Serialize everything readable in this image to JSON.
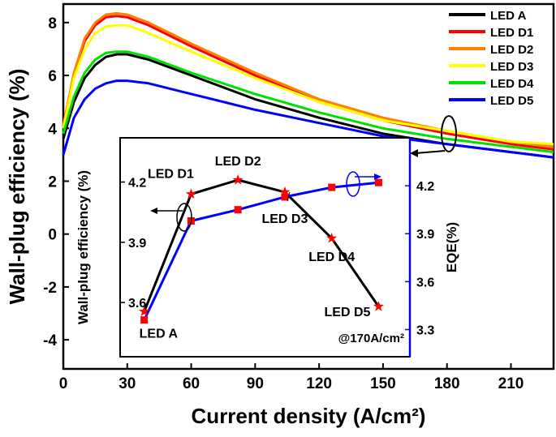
{
  "chart_data": [
    {
      "type": "line",
      "xlabel": "Current density (A/cm²)",
      "ylabel": "Wall-plug efficiency (%)",
      "x": [
        0,
        5,
        10,
        15,
        20,
        25,
        30,
        40,
        60,
        90,
        120,
        150,
        180,
        210,
        230
      ],
      "xlim": [
        0,
        230
      ],
      "xticks": [
        0,
        30,
        60,
        90,
        120,
        150,
        180,
        210
      ],
      "ylim": [
        -5.1,
        8.7
      ],
      "yticks": [
        -4,
        -2,
        0,
        2,
        4,
        6,
        8
      ],
      "legend": "upper right",
      "series": [
        {
          "name": "LED A",
          "color": "#000000",
          "values": [
            3.6,
            5.0,
            5.9,
            6.4,
            6.7,
            6.8,
            6.8,
            6.6,
            6.0,
            5.1,
            4.4,
            3.8,
            3.4,
            3.1,
            2.9
          ]
        },
        {
          "name": "LED D1",
          "color": "#ff0000",
          "values": [
            4.0,
            6.0,
            7.3,
            7.9,
            8.2,
            8.25,
            8.2,
            7.9,
            7.1,
            6.0,
            5.0,
            4.3,
            3.8,
            3.4,
            3.2
          ]
        },
        {
          "name": "LED D2",
          "color": "#ff8000",
          "values": [
            4.1,
            6.1,
            7.4,
            8.0,
            8.3,
            8.35,
            8.3,
            8.0,
            7.2,
            6.1,
            5.1,
            4.4,
            3.9,
            3.5,
            3.3
          ]
        },
        {
          "name": "LED D3",
          "color": "#ffff00",
          "values": [
            4.0,
            5.9,
            7.0,
            7.6,
            7.85,
            7.9,
            7.9,
            7.6,
            6.9,
            5.9,
            5.0,
            4.3,
            3.9,
            3.5,
            3.4
          ]
        },
        {
          "name": "LED D4",
          "color": "#00e000",
          "values": [
            3.8,
            5.2,
            6.1,
            6.6,
            6.85,
            6.9,
            6.9,
            6.7,
            6.1,
            5.3,
            4.6,
            4.0,
            3.6,
            3.3,
            3.1
          ]
        },
        {
          "name": "LED D5",
          "color": "#0000ff",
          "values": [
            3.0,
            4.4,
            5.1,
            5.5,
            5.7,
            5.8,
            5.8,
            5.7,
            5.3,
            4.7,
            4.2,
            3.7,
            3.4,
            3.1,
            2.9
          ]
        }
      ]
    },
    {
      "type": "line",
      "ylabel": "Wall-plug efficiency (%)",
      "y2label": "EQE(%)",
      "annotation": "@170A/cm²",
      "point_labels": [
        "LED A",
        "LED D1",
        "LED D2",
        "LED D3",
        "LED D4",
        "LED D5"
      ],
      "x": [
        38,
        60,
        82,
        104,
        126,
        148
      ],
      "xlim": [
        26.7,
        162.7
      ],
      "ylim": [
        3.33,
        4.42
      ],
      "yticks": [
        3.6,
        3.9,
        4.2
      ],
      "y2lim": [
        3.13,
        4.5
      ],
      "y2ticks": [
        3.3,
        3.6,
        3.9,
        4.2
      ],
      "series": [
        {
          "color": "#000000",
          "marker": "star",
          "marker_color": "#ff0000",
          "values": [
            3.555,
            4.14,
            4.21,
            4.15,
            3.92,
            3.58
          ]
        },
        {
          "color": "#0000ff",
          "marker": "square",
          "marker_color": "#ff0000",
          "axis": "y2",
          "values": [
            3.36,
            3.98,
            4.05,
            4.13,
            4.19,
            4.22
          ]
        }
      ]
    }
  ]
}
